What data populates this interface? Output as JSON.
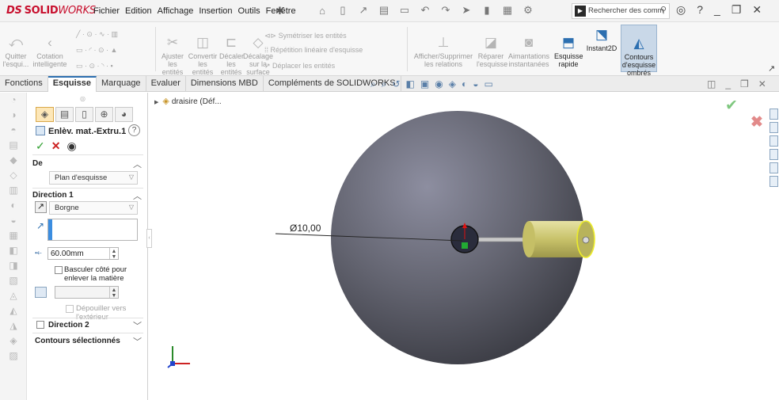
{
  "app": {
    "logo_ds": "DS",
    "logo_solid": "SOLID",
    "logo_works": "WORKS"
  },
  "menu": [
    "Fichier",
    "Edition",
    "Affichage",
    "Insertion",
    "Outils",
    "Fenêtre"
  ],
  "search": {
    "placeholder": "Rechercher des comm"
  },
  "commands": {
    "quitter": "Quitter\nl'esqui...",
    "cotation": "Cotation\nintelligente",
    "ajuster": "Ajuster les\nentités",
    "convertir": "Convertir\nles entités",
    "decaler": "Décaler\nles\nentités",
    "decalage": "Décalage\nsur la\nsurface",
    "symetriser": "Symétriser les entités",
    "repetition": "Répétition linéaire d'esquisse",
    "deplacer": "Déplacer les entités",
    "afficher": "Afficher/Supprimer\nles relations",
    "reparer": "Réparer\nl'esquisse",
    "aimantations": "Aimantations\ninstantanées",
    "esquisse_rapide": "Esquisse\nrapide",
    "instant2d": "Instant2D",
    "contours": "Contours\nd'esquisse\nombrés"
  },
  "tabs": [
    "Fonctions",
    "Esquisse",
    "Marquage",
    "Evaluer",
    "Dimensions MBD",
    "Compléments de SOLIDWORKS"
  ],
  "active_tab": "Esquisse",
  "property_manager": {
    "title": "Enlèv. mat.-Extru.1",
    "from_label": "De",
    "from_value": "Plan d'esquisse",
    "dir1_label": "Direction 1",
    "dir1_type": "Borgne",
    "depth": "60.00mm",
    "flip_side": "Basculer côté pour enlever la matière",
    "draft_outward": "Dépouiller vers l'extérieur",
    "dir2_label": "Direction 2",
    "selected_contours": "Contours sélectionnés"
  },
  "tree": {
    "part_name": "draisire (Déf..."
  },
  "viewport": {
    "dimension": "Ø10,00"
  },
  "colors": {
    "accent": "#2c6fb0",
    "sphere": "#5f6070",
    "cylinder": "#d8d37a",
    "brand": "#c8102e"
  }
}
